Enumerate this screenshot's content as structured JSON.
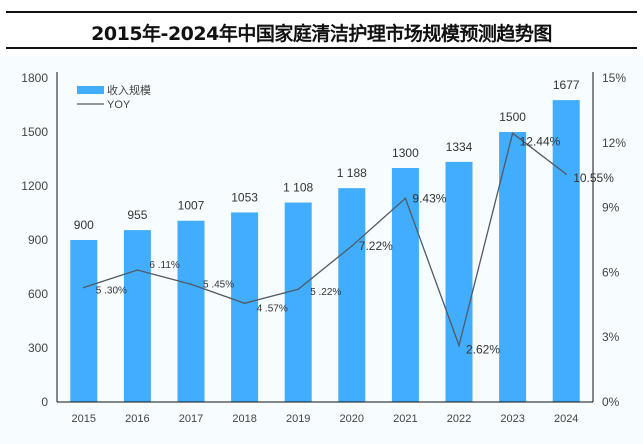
{
  "chart_data": {
    "type": "bar+line",
    "title": "2015年-2024年中国家庭清洁护理市场规模预测趋势图",
    "categories": [
      "2015",
      "2016",
      "2017",
      "2018",
      "2019",
      "2020",
      "2021",
      "2022",
      "2023",
      "2024"
    ],
    "series": [
      {
        "name": "收入规模",
        "type": "bar",
        "axis": "left",
        "color": "#42adfc",
        "values": [
          900,
          955,
          1007,
          1053,
          1108,
          1188,
          1300,
          1334,
          1500,
          1677
        ],
        "labels": [
          "900",
          "955",
          "1007",
          "1053",
          "1 108",
          "1 188",
          "1300",
          "1334",
          "1500",
          "1677"
        ]
      },
      {
        "name": "YOY",
        "type": "line",
        "axis": "right",
        "color": "#505a66",
        "values": [
          5.3,
          6.11,
          5.45,
          4.57,
          5.22,
          7.22,
          9.43,
          2.62,
          12.44,
          10.55
        ],
        "labels": [
          "5 .30%",
          "6 .11%",
          "5 .45%",
          "4 .57%",
          "5 .22%",
          "7.22%",
          "9.43%",
          "2.62%",
          "12.44%",
          "10.55%"
        ]
      }
    ],
    "y_left": {
      "range": [
        0,
        1800
      ],
      "ticks": [
        "0",
        "300",
        "600",
        "900",
        "1200",
        "1500",
        "1800"
      ]
    },
    "y_right": {
      "range": [
        0,
        15
      ],
      "ticks": [
        "0%",
        "3%",
        "6%",
        "9%",
        "12%",
        "15%"
      ]
    },
    "grid": false,
    "legend": "top-left"
  }
}
